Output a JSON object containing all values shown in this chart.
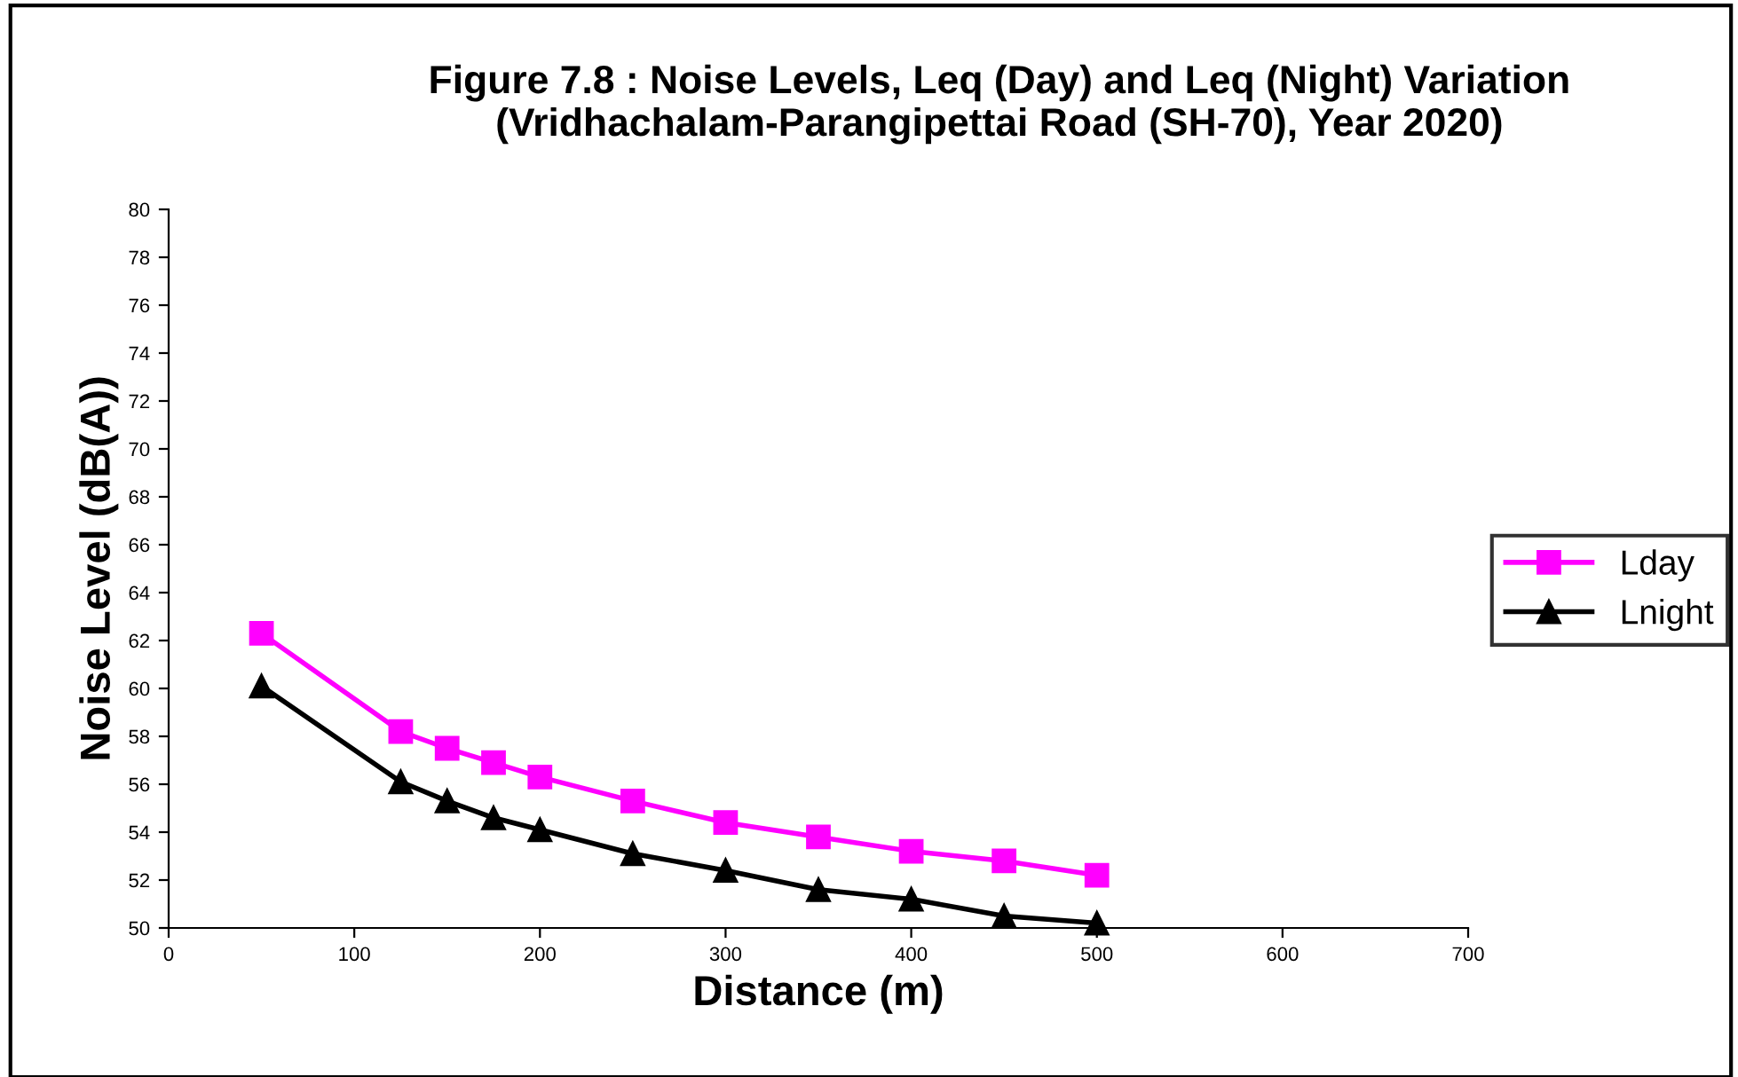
{
  "chart_data": {
    "type": "line",
    "title": "Figure 7.8 : Noise Levels, Leq (Day) and Leq (Night) Variation (Vridhachalam-Parangipettai Road (SH-70), Year 2020)",
    "xlabel": "Distance (m)",
    "ylabel": "Noise Level (dB(A))",
    "x": [
      50,
      125,
      150,
      175,
      200,
      250,
      300,
      350,
      400,
      450,
      500
    ],
    "series": [
      {
        "name": "Lday",
        "color": "#ff00ff",
        "marker": "square",
        "values": [
          62.3,
          58.2,
          57.5,
          56.9,
          56.3,
          55.3,
          54.4,
          53.8,
          53.2,
          52.8,
          52.2
        ]
      },
      {
        "name": "Lnight",
        "color": "#000000",
        "marker": "triangle",
        "values": [
          60.1,
          56.1,
          55.3,
          54.6,
          54.1,
          53.1,
          52.4,
          51.6,
          51.2,
          50.5,
          50.2
        ]
      }
    ],
    "xlim": [
      0,
      700
    ],
    "xticks": [
      0,
      100,
      200,
      300,
      400,
      500,
      600,
      700
    ],
    "ylim": [
      50,
      80
    ],
    "yticks": [
      50,
      52,
      54,
      56,
      58,
      60,
      62,
      64,
      66,
      68,
      70,
      72,
      74,
      76,
      78,
      80
    ],
    "grid": false,
    "legend": "right"
  }
}
